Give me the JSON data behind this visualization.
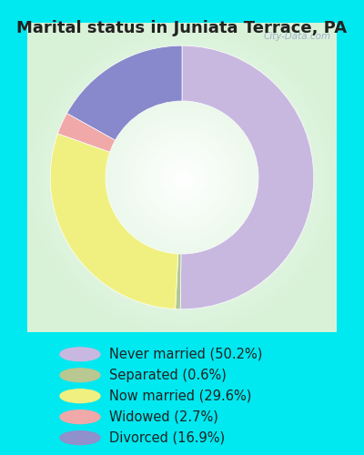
{
  "title": "Marital status in Juniata Terrace, PA",
  "slices": [
    50.2,
    0.6,
    29.6,
    2.7,
    16.9
  ],
  "labels": [
    "Never married (50.2%)",
    "Separated (0.6%)",
    "Now married (29.6%)",
    "Widowed (2.7%)",
    "Divorced (16.9%)"
  ],
  "colors": [
    "#c8b8e0",
    "#b0c890",
    "#f0f080",
    "#f0a8a8",
    "#8888cc"
  ],
  "legend_circle_colors": [
    "#c8b8e0",
    "#b8c890",
    "#f0f080",
    "#f0a8a8",
    "#9090cc"
  ],
  "bg_cyan": "#00e8f0",
  "title_color": "#222222",
  "title_fontsize": 13,
  "legend_fontsize": 10.5,
  "watermark": "City-Data.com",
  "start_angle": 90,
  "donut_width": 0.42
}
